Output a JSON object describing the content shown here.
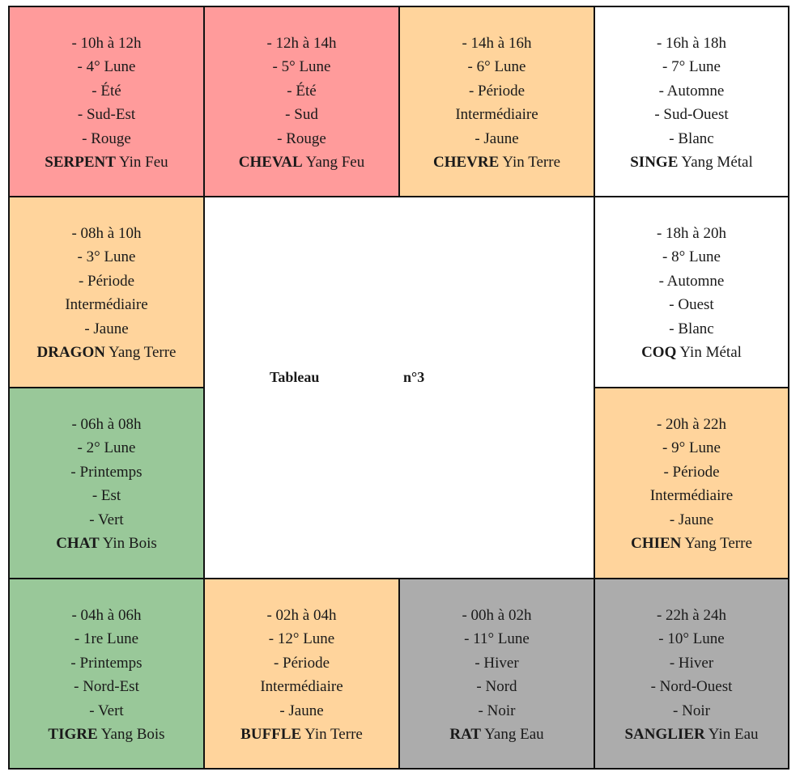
{
  "table": {
    "center": {
      "title": "Tableau",
      "number": "n°3"
    },
    "cells": {
      "serpent": {
        "lines": [
          "- 10h à 12h",
          "- 4° Lune",
          "- Été",
          "- Sud-Est",
          "- Rouge"
        ],
        "animal": "SERPENT",
        "element": " Yin Feu",
        "color": "#ff9b9b"
      },
      "cheval": {
        "lines": [
          "- 12h à 14h",
          "- 5° Lune",
          "- Été",
          "- Sud",
          "- Rouge"
        ],
        "animal": "CHEVAL",
        "element": " Yang Feu",
        "color": "#ff9b9b"
      },
      "chevre": {
        "lines": [
          "- 14h à 16h",
          "- 6° Lune",
          "- Période",
          "Intermédiaire",
          "- Jaune"
        ],
        "animal": "CHEVRE",
        "element": " Yin Terre",
        "color": "#ffd49c"
      },
      "singe": {
        "lines": [
          "- 16h à 18h",
          "- 7° Lune",
          "- Automne",
          "- Sud-Ouest",
          "- Blanc"
        ],
        "animal": "SINGE",
        "element": " Yang Métal",
        "color": "#ffffff"
      },
      "dragon": {
        "lines": [
          "- 08h à 10h",
          "- 3° Lune",
          "- Période",
          "Intermédiaire",
          "- Jaune"
        ],
        "animal": "DRAGON",
        "element": " Yang Terre",
        "color": "#ffd49c"
      },
      "coq": {
        "lines": [
          "- 18h à 20h",
          "- 8° Lune",
          "- Automne",
          "- Ouest",
          "- Blanc"
        ],
        "animal": "COQ",
        "element": " Yin Métal",
        "color": "#ffffff"
      },
      "chat": {
        "lines": [
          "- 06h à 08h",
          "- 2° Lune",
          "- Printemps",
          "- Est",
          "- Vert"
        ],
        "animal": "CHAT",
        "element": " Yin Bois",
        "color": "#99c899"
      },
      "chien": {
        "lines": [
          "- 20h à 22h",
          "- 9° Lune",
          "- Période",
          "Intermédiaire",
          "- Jaune"
        ],
        "animal": "CHIEN",
        "element": " Yang Terre",
        "color": "#ffd49c"
      },
      "tigre": {
        "lines": [
          "- 04h à 06h",
          "- 1re Lune",
          "- Printemps",
          "- Nord-Est",
          "- Vert"
        ],
        "animal": "TIGRE",
        "element": " Yang Bois",
        "color": "#99c899"
      },
      "buffle": {
        "lines": [
          "- 02h à 04h",
          "- 12° Lune",
          "- Période",
          "Intermédiaire",
          "- Jaune"
        ],
        "animal": "BUFFLE",
        "element": " Yin Terre",
        "color": "#ffd49c"
      },
      "rat": {
        "lines": [
          "- 00h à 02h",
          "- 11° Lune",
          "- Hiver",
          "- Nord",
          "- Noir"
        ],
        "animal": "RAT",
        "element": " Yang Eau",
        "color": "#acacac"
      },
      "sanglier": {
        "lines": [
          "- 22h à 24h",
          "- 10° Lune",
          "- Hiver",
          "- Nord-Ouest",
          "- Noir"
        ],
        "animal": "SANGLIER",
        "element": " Yin Eau",
        "color": "#acacac"
      }
    }
  }
}
